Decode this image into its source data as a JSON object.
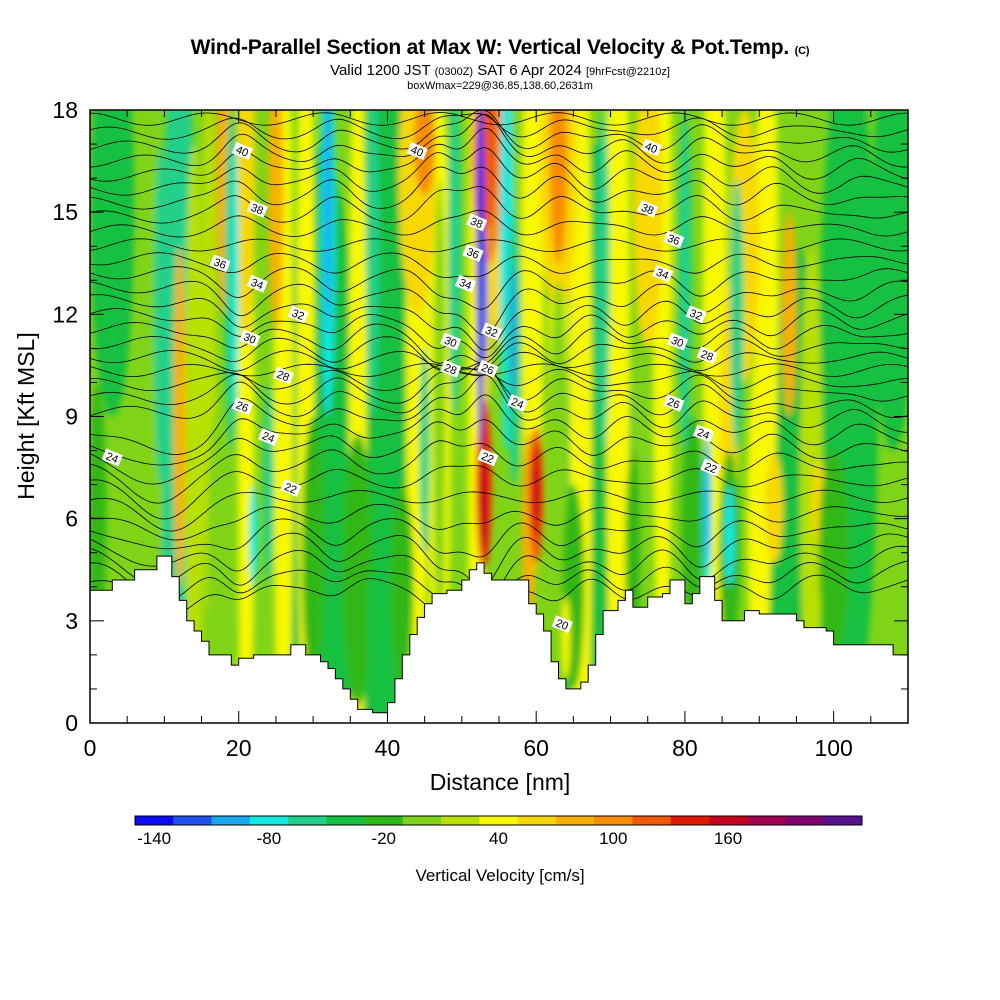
{
  "header": {
    "title_main": "Wind-Parallel Section at Max W: Vertical Velocity & Pot.Temp.",
    "title_tag": "(C)",
    "valid_prefix": "Valid 1200 JST",
    "valid_zulu": "(0300Z)",
    "valid_date": "SAT 6 Apr 2024",
    "forecast_tag": "[9hrFcst@2210z]",
    "box_info": "boxWmax=229@36.85,138.60,2631m"
  },
  "chart_data": {
    "type": "heatmap",
    "title": "Wind-Parallel Section at Max W: Vertical Velocity & Pot.Temp.",
    "xlabel": "Distance [nm]",
    "ylabel": "Height [Kft MSL]",
    "xlim": [
      0,
      110
    ],
    "ylim": [
      0,
      18
    ],
    "x_ticks": [
      0,
      20,
      40,
      60,
      80,
      100
    ],
    "y_ticks": [
      0,
      3,
      6,
      9,
      12,
      15,
      18
    ],
    "colorbar": {
      "label": "Vertical Velocity [cm/s]",
      "tick_values": [
        -140,
        -80,
        -20,
        40,
        100,
        160
      ],
      "colors": [
        "#0b0bf5",
        "#2050f0",
        "#1aa8f0",
        "#10e8e0",
        "#20d08a",
        "#14c040",
        "#30b818",
        "#80d418",
        "#b8e000",
        "#f8f800",
        "#f8d800",
        "#f8b000",
        "#f88c00",
        "#f05800",
        "#e01800",
        "#c80020",
        "#a00050",
        "#800070",
        "#58108c"
      ]
    },
    "terrain_kft": [
      [
        0,
        3.9
      ],
      [
        3,
        3.9
      ],
      [
        3,
        4.2
      ],
      [
        6,
        4.2
      ],
      [
        6,
        4.5
      ],
      [
        9,
        4.5
      ],
      [
        9,
        4.9
      ],
      [
        11,
        4.9
      ],
      [
        11,
        4.3
      ],
      [
        12,
        4.3
      ],
      [
        12,
        3.6
      ],
      [
        13,
        3.6
      ],
      [
        13,
        3.0
      ],
      [
        14,
        3.0
      ],
      [
        14,
        2.7
      ],
      [
        15,
        2.7
      ],
      [
        15,
        2.4
      ],
      [
        16,
        2.4
      ],
      [
        16,
        2.0
      ],
      [
        19,
        2.0
      ],
      [
        19,
        1.7
      ],
      [
        20,
        1.7
      ],
      [
        20,
        1.9
      ],
      [
        22,
        1.9
      ],
      [
        22,
        2.0
      ],
      [
        27,
        2.0
      ],
      [
        27,
        2.3
      ],
      [
        29,
        2.3
      ],
      [
        29,
        2.0
      ],
      [
        31,
        2.0
      ],
      [
        31,
        1.8
      ],
      [
        32,
        1.8
      ],
      [
        32,
        1.6
      ],
      [
        33,
        1.6
      ],
      [
        33,
        1.3
      ],
      [
        34,
        1.3
      ],
      [
        34,
        1.0
      ],
      [
        35,
        1.0
      ],
      [
        35,
        0.7
      ],
      [
        36,
        0.7
      ],
      [
        36,
        0.4
      ],
      [
        38,
        0.4
      ],
      [
        38,
        0.3
      ],
      [
        40,
        0.3
      ],
      [
        40,
        0.6
      ],
      [
        41,
        0.6
      ],
      [
        41,
        1.3
      ],
      [
        42,
        1.3
      ],
      [
        42,
        2.0
      ],
      [
        43,
        2.0
      ],
      [
        43,
        2.6
      ],
      [
        44,
        2.6
      ],
      [
        44,
        3.1
      ],
      [
        45,
        3.1
      ],
      [
        45,
        3.5
      ],
      [
        46,
        3.5
      ],
      [
        46,
        3.8
      ],
      [
        48,
        3.8
      ],
      [
        48,
        3.9
      ],
      [
        50,
        3.9
      ],
      [
        50,
        4.2
      ],
      [
        51,
        4.2
      ],
      [
        51,
        4.5
      ],
      [
        52,
        4.5
      ],
      [
        52,
        4.7
      ],
      [
        53,
        4.7
      ],
      [
        53,
        4.4
      ],
      [
        54,
        4.4
      ],
      [
        54,
        4.2
      ],
      [
        59,
        4.2
      ],
      [
        59,
        3.5
      ],
      [
        60,
        3.5
      ],
      [
        60,
        3.2
      ],
      [
        61,
        3.2
      ],
      [
        61,
        2.7
      ],
      [
        62,
        2.7
      ],
      [
        62,
        1.8
      ],
      [
        63,
        1.8
      ],
      [
        63,
        1.3
      ],
      [
        64,
        1.3
      ],
      [
        64,
        1.0
      ],
      [
        66,
        1.0
      ],
      [
        66,
        1.2
      ],
      [
        67,
        1.2
      ],
      [
        67,
        1.7
      ],
      [
        68,
        1.7
      ],
      [
        68,
        2.6
      ],
      [
        69,
        2.6
      ],
      [
        69,
        3.3
      ],
      [
        71,
        3.3
      ],
      [
        71,
        3.6
      ],
      [
        72,
        3.6
      ],
      [
        72,
        3.9
      ],
      [
        73,
        3.9
      ],
      [
        73,
        3.4
      ],
      [
        75,
        3.4
      ],
      [
        75,
        3.7
      ],
      [
        77,
        3.7
      ],
      [
        77,
        3.8
      ],
      [
        78,
        3.8
      ],
      [
        78,
        4.2
      ],
      [
        80,
        4.2
      ],
      [
        80,
        3.5
      ],
      [
        81,
        3.5
      ],
      [
        81,
        3.8
      ],
      [
        82,
        3.8
      ],
      [
        82,
        4.3
      ],
      [
        84,
        4.3
      ],
      [
        84,
        3.6
      ],
      [
        85,
        3.6
      ],
      [
        85,
        3.0
      ],
      [
        88,
        3.0
      ],
      [
        88,
        3.3
      ],
      [
        90,
        3.3
      ],
      [
        90,
        3.2
      ],
      [
        95,
        3.2
      ],
      [
        95,
        3.0
      ],
      [
        96,
        3.0
      ],
      [
        96,
        2.8
      ],
      [
        99,
        2.8
      ],
      [
        99,
        2.7
      ],
      [
        100,
        2.7
      ],
      [
        100,
        2.3
      ],
      [
        108,
        2.3
      ],
      [
        108,
        2.0
      ],
      [
        110,
        2.0
      ]
    ],
    "contour_labels": [
      {
        "text": "40",
        "x": 20.5,
        "y": 16.8
      },
      {
        "text": "40",
        "x": 44,
        "y": 16.8
      },
      {
        "text": "40",
        "x": 75.5,
        "y": 16.9
      },
      {
        "text": "38",
        "x": 22.5,
        "y": 15.1
      },
      {
        "text": "38",
        "x": 75,
        "y": 15.1
      },
      {
        "text": "38",
        "x": 52,
        "y": 14.7
      },
      {
        "text": "36",
        "x": 17.5,
        "y": 13.5
      },
      {
        "text": "36",
        "x": 51.5,
        "y": 13.8
      },
      {
        "text": "36",
        "x": 78.5,
        "y": 14.2
      },
      {
        "text": "34",
        "x": 22.5,
        "y": 12.9
      },
      {
        "text": "34",
        "x": 50.5,
        "y": 12.9
      },
      {
        "text": "34",
        "x": 77,
        "y": 13.2
      },
      {
        "text": "32",
        "x": 28,
        "y": 12.0
      },
      {
        "text": "32",
        "x": 54,
        "y": 11.5
      },
      {
        "text": "32",
        "x": 81.5,
        "y": 12.0
      },
      {
        "text": "30",
        "x": 21.5,
        "y": 11.3
      },
      {
        "text": "30",
        "x": 48.5,
        "y": 11.2
      },
      {
        "text": "30",
        "x": 79,
        "y": 11.2
      },
      {
        "text": "28",
        "x": 26,
        "y": 10.2
      },
      {
        "text": "28",
        "x": 48.5,
        "y": 10.4
      },
      {
        "text": "28",
        "x": 83,
        "y": 10.8
      },
      {
        "text": "26",
        "x": 20.5,
        "y": 9.3
      },
      {
        "text": "26",
        "x": 53.5,
        "y": 10.4
      },
      {
        "text": "26",
        "x": 78.5,
        "y": 9.4
      },
      {
        "text": "24",
        "x": 3,
        "y": 7.8
      },
      {
        "text": "24",
        "x": 24,
        "y": 8.4
      },
      {
        "text": "24",
        "x": 57.5,
        "y": 9.4
      },
      {
        "text": "24",
        "x": 82.5,
        "y": 8.5
      },
      {
        "text": "22",
        "x": 27,
        "y": 6.9
      },
      {
        "text": "22",
        "x": 53.5,
        "y": 7.8
      },
      {
        "text": "22",
        "x": 83.5,
        "y": 7.5
      },
      {
        "text": "20",
        "x": 63.5,
        "y": 2.9
      }
    ]
  }
}
